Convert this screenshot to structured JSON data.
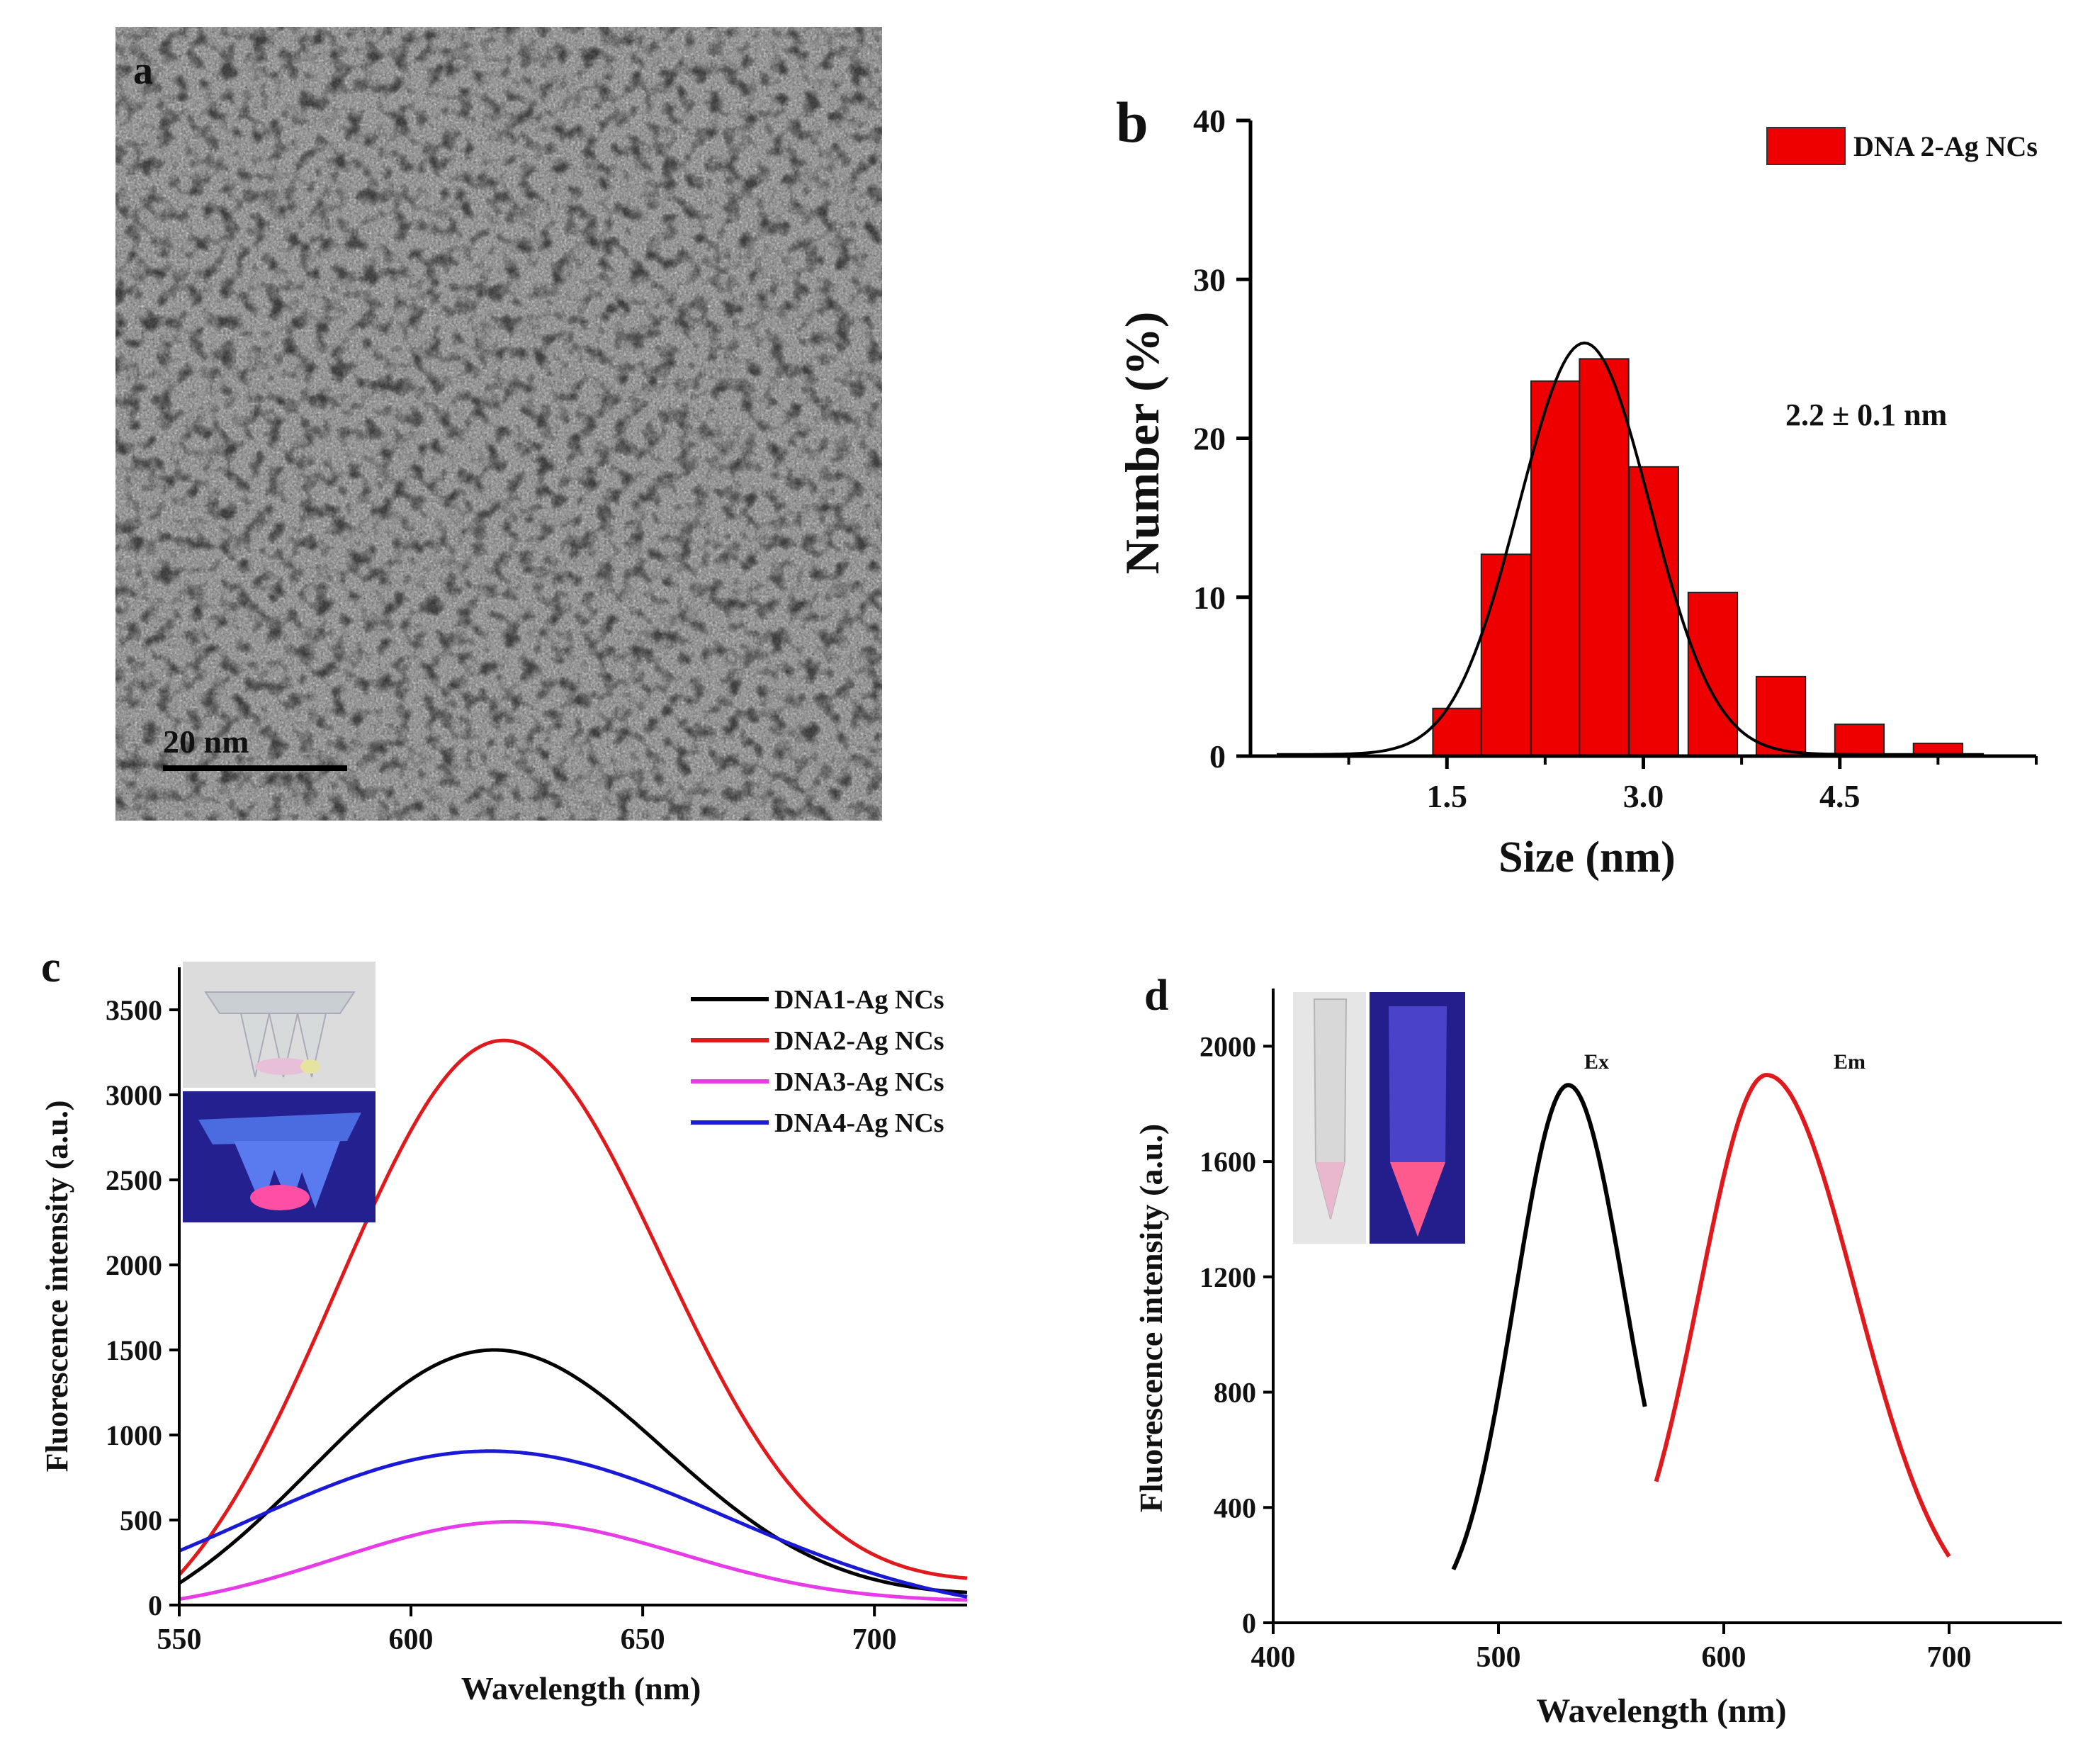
{
  "panels": {
    "a": {
      "label": "a",
      "scale_bar_label": "20 nm",
      "description_kind": "TEM micrograph"
    }
  },
  "colors": {
    "black": "#000000",
    "red": "#e0191c",
    "magenta": "#e83be8",
    "blue": "#1a1ad6",
    "hist_fill": "#ee0000",
    "tem_bg": "#7a7a7a"
  },
  "chart_data": [
    {
      "id": "b",
      "panel_label": "b",
      "type": "bar",
      "xlabel": "Size (nm)",
      "ylabel": "Number (%)",
      "xlim": [
        0,
        6.0
      ],
      "ylim": [
        0,
        40
      ],
      "xticks": [
        1.5,
        3.0,
        4.5
      ],
      "xtick_labels": [
        "1.5",
        "3.0",
        "4.5"
      ],
      "yticks": [
        0,
        10,
        20,
        30,
        40
      ],
      "ytick_labels": [
        "0",
        "10",
        "20",
        "30",
        "40"
      ],
      "legend": [
        "DNA 2-Ag NCs"
      ],
      "legend_position": "top-right",
      "annotation": "2.2 ± 0.1 nm",
      "bin_width": 0.375,
      "bins": [
        {
          "x": 1.58,
          "value": 3.0
        },
        {
          "x": 1.95,
          "value": 12.7
        },
        {
          "x": 2.33,
          "value": 23.6
        },
        {
          "x": 2.7,
          "value": 25.0
        },
        {
          "x": 3.08,
          "value": 18.2
        },
        {
          "x": 3.53,
          "value": 10.3
        },
        {
          "x": 4.05,
          "value": 5.0
        },
        {
          "x": 4.65,
          "value": 2.0
        },
        {
          "x": 5.25,
          "value": 0.8
        }
      ],
      "fit": {
        "type": "gaussian",
        "mean": 2.55,
        "sigma": 0.5,
        "amplitude": 25.9,
        "baseline": 0.1,
        "x_range": [
          0.2,
          5.6
        ]
      }
    },
    {
      "id": "c",
      "panel_label": "c",
      "type": "line",
      "xlabel": "Wavelength (nm)",
      "ylabel": "Fluorescence intensity (a.u.)",
      "xlim": [
        550,
        720
      ],
      "ylim": [
        0,
        3750
      ],
      "xticks": [
        550,
        600,
        650,
        700
      ],
      "xtick_labels": [
        "550",
        "600",
        "650",
        "700"
      ],
      "yticks": [
        0,
        500,
        1000,
        1500,
        2000,
        2500,
        3000,
        3500
      ],
      "ytick_labels": [
        "0",
        "500",
        "1000",
        "1500",
        "2000",
        "2500",
        "3000",
        "3500"
      ],
      "legend_position": "top-right",
      "series": [
        {
          "name": "DNA1-Ag NCs",
          "peak": 618,
          "max": 1500,
          "width": 38,
          "at_550": 85,
          "at_720": 75,
          "color": "black"
        },
        {
          "name": "DNA2-Ag NCs",
          "peak": 620,
          "max": 3320,
          "width": 35,
          "at_550": 135,
          "at_720": 160,
          "color": "red"
        },
        {
          "name": "DNA3-Ag NCs",
          "peak": 622,
          "max": 490,
          "width": 37,
          "at_550": 28,
          "at_720": 30,
          "color": "magenta"
        },
        {
          "name": "DNA4-Ag NCs",
          "peak": 617,
          "max": 905,
          "width": 52,
          "at_550": 260,
          "at_720": 35,
          "color": "blue"
        }
      ]
    },
    {
      "id": "d",
      "panel_label": "d",
      "type": "line",
      "xlabel": "Wavelength (nm)",
      "ylabel": "Fluorescence intensity (a.u.)",
      "xlim": [
        400,
        750
      ],
      "ylim": [
        0,
        2200
      ],
      "xticks": [
        400,
        500,
        600,
        700
      ],
      "xtick_labels": [
        "400",
        "500",
        "600",
        "700"
      ],
      "yticks": [
        0,
        400,
        800,
        1200,
        1600,
        2000
      ],
      "ytick_labels": [
        "0",
        "400",
        "800",
        "1200",
        "1600",
        "2000"
      ],
      "series": [
        {
          "name": "Ex",
          "label": "Ex",
          "peak": 531,
          "max": 1865,
          "start": 480,
          "end": 565,
          "at_start": 185,
          "at_end": 750,
          "color": "black"
        },
        {
          "name": "Em",
          "label": "Em",
          "peak": 619,
          "max": 1900,
          "start": 570,
          "end": 700,
          "at_start": 490,
          "at_end": 230,
          "color": "red"
        }
      ]
    }
  ]
}
